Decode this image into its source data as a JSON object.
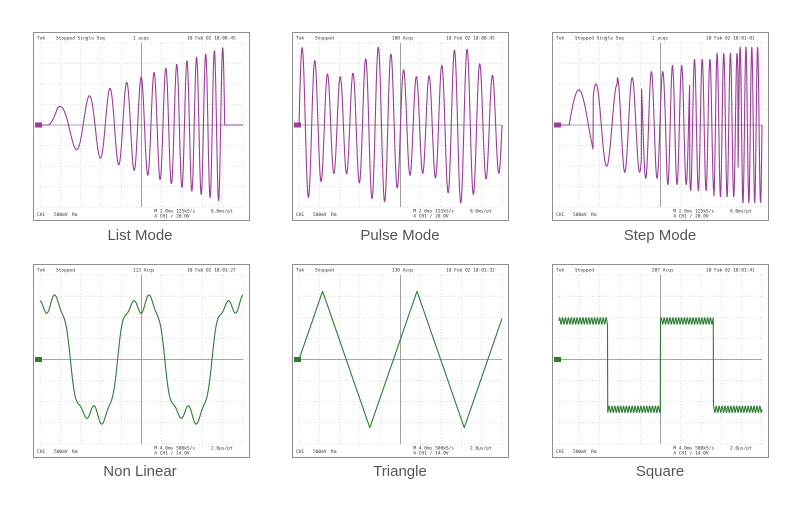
{
  "chart_data": [
    {
      "type": "line",
      "title": "List Mode",
      "waveform": "chirp-burst",
      "color": "#9c3d99",
      "x": [
        0,
        1
      ],
      "y": [
        -1,
        1
      ],
      "header": [
        "Tek",
        "Stopped  Single Seq",
        "1 acqs",
        "10 Feb 02 10:08:45"
      ],
      "footer": [
        "CH1",
        "500mV",
        "Rm",
        "M 2.0ms 125kS/s",
        "A CH1 / 20.0V",
        "8.0ms/pt"
      ],
      "grid": true
    },
    {
      "type": "line",
      "title": "Pulse Mode",
      "waveform": "pulsed-sine",
      "color": "#9c3d99",
      "x": [
        0,
        1
      ],
      "y": [
        -1,
        1
      ],
      "header": [
        "Tek",
        "Stopped",
        "100 Acqs",
        "10 Feb 02 10:08:45"
      ],
      "footer": [
        "CH1",
        "500mV",
        "Rm",
        "M 2.0ms 125kS/s",
        "A CH1 / 20.0V",
        "8.0ms/pt"
      ],
      "grid": true
    },
    {
      "type": "line",
      "title": "Step Mode",
      "waveform": "stepped-frequency",
      "color": "#9c3d99",
      "x": [
        0,
        1
      ],
      "y": [
        -1,
        1
      ],
      "header": [
        "Tek",
        "Stopped  Single Seq",
        "1 acqs",
        "10 Feb 02 10:01:01"
      ],
      "footer": [
        "CH1",
        "500mV",
        "Rm",
        "M 2.0ms 125kS/s",
        "A CH1 / 20.0V",
        "8.0ms/pt"
      ],
      "grid": true
    },
    {
      "type": "line",
      "title": "Non Linear",
      "waveform": "harmonic",
      "color": "#2e7d32",
      "x": [
        0,
        1
      ],
      "y": [
        -1,
        1
      ],
      "header": [
        "Tek",
        "Stopped",
        "113 Acqs",
        "10 Feb 02 10:01:27"
      ],
      "footer": [
        "CH1",
        "500mV",
        "Rm",
        "M 4.0ms 500kS/s",
        "A CH1 / 14.0V",
        "2.0µs/pt"
      ],
      "grid": true
    },
    {
      "type": "line",
      "title": "Triangle",
      "waveform": "triangle",
      "color": "#2e7d32",
      "x": [
        0,
        1
      ],
      "y": [
        -1,
        1
      ],
      "header": [
        "Tek",
        "Stopped",
        "130 Acqs",
        "10 Feb 02 10:01:32"
      ],
      "footer": [
        "CH1",
        "500mV",
        "Rm",
        "M 4.0ms 500kS/s",
        "A CH1 / 14.0V",
        "2.0µs/pt"
      ],
      "grid": true
    },
    {
      "type": "line",
      "title": "Square",
      "waveform": "square",
      "color": "#2e7d32",
      "x": [
        0,
        1
      ],
      "y": [
        -1,
        1
      ],
      "header": [
        "Tek",
        "Stopped",
        "287 Acqs",
        "10 Feb 02 10:01:41"
      ],
      "footer": [
        "CH1",
        "500mV",
        "Rm",
        "M 4.0ms 500kS/s",
        "A CH1 / 14.0V",
        "2.0µs/pt"
      ],
      "grid": true
    }
  ],
  "colors": {
    "grid": "#b8b8b8",
    "center": "#8c8c8c",
    "frame": "#8e8e8e",
    "caption": "#555555"
  }
}
